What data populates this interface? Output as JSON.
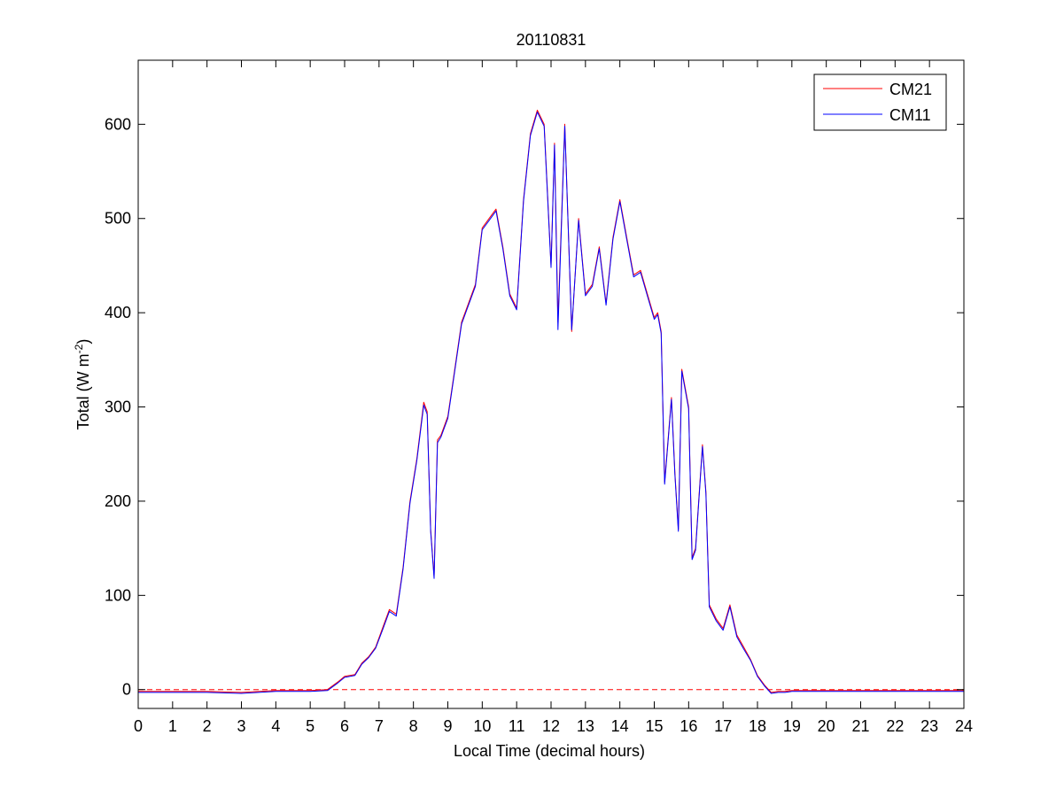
{
  "chart_data": {
    "type": "line",
    "title": "20110831",
    "xlabel": "Local Time (decimal hours)",
    "ylabel": {
      "prefix": "Total (W m",
      "superscript": "-2",
      "suffix": ")"
    },
    "xlim": [
      0,
      24
    ],
    "ylim": [
      -20,
      668
    ],
    "xticks": [
      0,
      1,
      2,
      3,
      4,
      5,
      6,
      7,
      8,
      9,
      10,
      11,
      12,
      13,
      14,
      15,
      16,
      17,
      18,
      19,
      20,
      21,
      22,
      23,
      24
    ],
    "yticks": [
      0,
      100,
      200,
      300,
      400,
      500,
      600
    ],
    "grid": false,
    "legend_position": "top-right",
    "reference_line": {
      "y": 0,
      "color": "#ff0000",
      "style": "dashed"
    },
    "series": [
      {
        "name": "CM21",
        "color": "#ff0000",
        "x": [
          0,
          1,
          2,
          3,
          4,
          5,
          5.5,
          5.8,
          6,
          6.3,
          6.5,
          6.7,
          6.9,
          7.1,
          7.3,
          7.5,
          7.7,
          7.9,
          8.1,
          8.3,
          8.4,
          8.5,
          8.6,
          8.7,
          8.8,
          9,
          9.2,
          9.4,
          9.6,
          9.8,
          10,
          10.2,
          10.4,
          10.6,
          10.8,
          11,
          11.2,
          11.4,
          11.6,
          11.8,
          12,
          12.1,
          12.2,
          12.4,
          12.6,
          12.8,
          13,
          13.2,
          13.4,
          13.6,
          13.8,
          14,
          14.2,
          14.4,
          14.6,
          14.8,
          15,
          15.1,
          15.2,
          15.3,
          15.5,
          15.6,
          15.7,
          15.8,
          16,
          16.1,
          16.2,
          16.4,
          16.5,
          16.6,
          16.8,
          17,
          17.2,
          17.4,
          17.6,
          17.8,
          18,
          18.2,
          18.4,
          18.6,
          18.8,
          19,
          19.5,
          20,
          21,
          22,
          23,
          24
        ],
        "values": [
          -2,
          -2,
          -2,
          -3,
          -1,
          -1,
          0,
          8,
          14,
          16,
          28,
          35,
          45,
          65,
          85,
          80,
          130,
          200,
          245,
          305,
          295,
          170,
          120,
          265,
          270,
          290,
          340,
          390,
          410,
          430,
          490,
          500,
          510,
          470,
          420,
          405,
          520,
          590,
          615,
          600,
          450,
          580,
          390,
          600,
          380,
          500,
          420,
          430,
          470,
          410,
          480,
          520,
          480,
          440,
          445,
          420,
          395,
          400,
          380,
          220,
          310,
          230,
          170,
          340,
          300,
          140,
          150,
          260,
          210,
          90,
          75,
          65,
          90,
          58,
          45,
          32,
          15,
          5,
          -3,
          -2,
          -2,
          -1,
          -1,
          -1,
          -1,
          -1,
          -1,
          -1
        ]
      },
      {
        "name": "CM11",
        "color": "#0000ff",
        "x": [
          0,
          1,
          2,
          3,
          4,
          5,
          5.5,
          5.8,
          6,
          6.3,
          6.5,
          6.7,
          6.9,
          7.1,
          7.3,
          7.5,
          7.7,
          7.9,
          8.1,
          8.3,
          8.4,
          8.5,
          8.6,
          8.7,
          8.8,
          9,
          9.2,
          9.4,
          9.6,
          9.8,
          10,
          10.2,
          10.4,
          10.6,
          10.8,
          11,
          11.2,
          11.4,
          11.6,
          11.8,
          12,
          12.1,
          12.2,
          12.4,
          12.6,
          12.8,
          13,
          13.2,
          13.4,
          13.6,
          13.8,
          14,
          14.2,
          14.4,
          14.6,
          14.8,
          15,
          15.1,
          15.2,
          15.3,
          15.5,
          15.6,
          15.7,
          15.8,
          16,
          16.1,
          16.2,
          16.4,
          16.5,
          16.6,
          16.8,
          17,
          17.2,
          17.4,
          17.6,
          17.8,
          18,
          18.2,
          18.4,
          18.6,
          18.8,
          19,
          19.5,
          20,
          21,
          22,
          23,
          24
        ],
        "values": [
          -3,
          -3,
          -3,
          -4,
          -2,
          -2,
          -1,
          7,
          13,
          15,
          27,
          34,
          44,
          63,
          83,
          78,
          128,
          198,
          243,
          302,
          292,
          168,
          118,
          262,
          268,
          288,
          338,
          388,
          408,
          428,
          488,
          498,
          508,
          468,
          418,
          403,
          518,
          588,
          613,
          598,
          448,
          578,
          382,
          598,
          382,
          498,
          418,
          428,
          468,
          408,
          478,
          518,
          478,
          438,
          443,
          418,
          393,
          398,
          378,
          218,
          308,
          228,
          168,
          338,
          298,
          138,
          148,
          258,
          208,
          88,
          73,
          63,
          88,
          56,
          43,
          31,
          14,
          4,
          -4,
          -3,
          -3,
          -2,
          -2,
          -2,
          -2,
          -2,
          -2,
          -2
        ]
      }
    ]
  }
}
